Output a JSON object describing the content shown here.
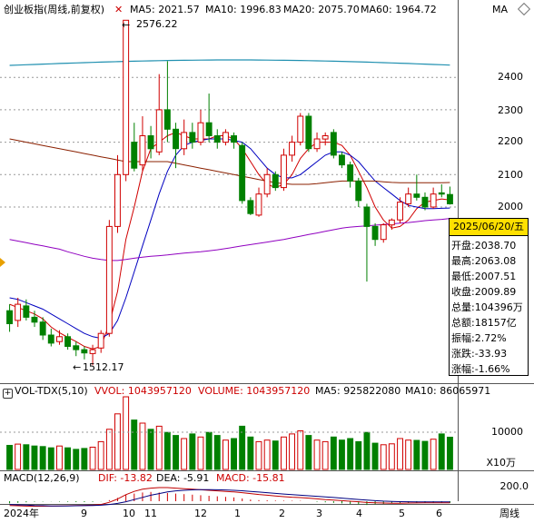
{
  "header": {
    "title": "创业板指(周线,前复权)",
    "ma5": "MA5: 2021.57",
    "ma10": "MA10: 1996.83",
    "ma20": "MA20: 2075.70",
    "ma60": "MA60: 1964.72",
    "ma_more": "MA",
    "colors": {
      "ma5": "#d00000",
      "ma10": "#0000c0",
      "ma20": "#8b2000",
      "ma60": "#9000c0"
    }
  },
  "price_axis": {
    "labels": [
      "2400",
      "2300",
      "2200",
      "2100",
      "2000"
    ]
  },
  "annotations": {
    "high": "2576.22",
    "low": "1512.17"
  },
  "info_panel": {
    "date": "2025/06/20/五",
    "rows": [
      {
        "text": "开盘:2038.70"
      },
      {
        "text": "最高:2063.08"
      },
      {
        "text": "最低:2007.51"
      },
      {
        "text": "收盘:2009.89"
      },
      {
        "text": "总量:104396万"
      },
      {
        "text": "总额:18157亿"
      },
      {
        "text": "振幅:2.72%"
      },
      {
        "text": "涨跌:-33.93"
      },
      {
        "text": "涨幅:-1.66%"
      }
    ]
  },
  "volume_panel": {
    "title": "VOL-TDX(5,10)",
    "vvol": "VVOL: 1043957120",
    "volume": "VOLUME: 1043957120",
    "ma5": "MA5: 925822080",
    "ma10": "MA10: 86065971",
    "axis_label": "10000",
    "unit": "X10万"
  },
  "macd_panel": {
    "title": "MACD(12,26,9)",
    "dif": "DIF: -13.82",
    "dea": "DEA: -5.91",
    "macd": "MACD: -15.81",
    "axis_label": "200.0"
  },
  "x_axis": {
    "labels": [
      "2024年",
      "9",
      "10",
      "11",
      "12",
      "1",
      "2",
      "3",
      "4",
      "5",
      "6"
    ],
    "period": "周线"
  },
  "chart_data": {
    "type": "candlestick",
    "y_axis_ticks": [
      2000,
      2100,
      2200,
      2300,
      2400
    ],
    "candles": [
      {
        "o": 1680,
        "c": 1640,
        "h": 1700,
        "l": 1615
      },
      {
        "o": 1650,
        "c": 1700,
        "h": 1720,
        "l": 1630
      },
      {
        "o": 1695,
        "c": 1660,
        "h": 1715,
        "l": 1650
      },
      {
        "o": 1660,
        "c": 1645,
        "h": 1680,
        "l": 1630
      },
      {
        "o": 1645,
        "c": 1605,
        "h": 1660,
        "l": 1590
      },
      {
        "o": 1605,
        "c": 1580,
        "h": 1625,
        "l": 1570
      },
      {
        "o": 1585,
        "c": 1600,
        "h": 1620,
        "l": 1575
      },
      {
        "o": 1600,
        "c": 1570,
        "h": 1610,
        "l": 1560
      },
      {
        "o": 1572,
        "c": 1560,
        "h": 1585,
        "l": 1540
      },
      {
        "o": 1560,
        "c": 1550,
        "h": 1570,
        "l": 1530
      },
      {
        "o": 1548,
        "c": 1560,
        "h": 1575,
        "l": 1512.17
      },
      {
        "o": 1565,
        "c": 1610,
        "h": 1620,
        "l": 1550
      },
      {
        "o": 1610,
        "c": 1940,
        "h": 1960,
        "l": 1600
      },
      {
        "o": 1940,
        "c": 2100,
        "h": 2160,
        "l": 1920
      },
      {
        "o": 2100,
        "c": 2576.22,
        "h": 2576.22,
        "l": 2080
      },
      {
        "o": 2200,
        "c": 2120,
        "h": 2260,
        "l": 2110
      },
      {
        "o": 2130,
        "c": 2220,
        "h": 2280,
        "l": 2110
      },
      {
        "o": 2220,
        "c": 2180,
        "h": 2250,
        "l": 2150
      },
      {
        "o": 2170,
        "c": 2300,
        "h": 2410,
        "l": 2160
      },
      {
        "o": 2300,
        "c": 2240,
        "h": 2450,
        "l": 2200
      },
      {
        "o": 2240,
        "c": 2180,
        "h": 2260,
        "l": 2120
      },
      {
        "o": 2180,
        "c": 2230,
        "h": 2270,
        "l": 2160
      },
      {
        "o": 2230,
        "c": 2200,
        "h": 2260,
        "l": 2180
      },
      {
        "o": 2200,
        "c": 2260,
        "h": 2300,
        "l": 2190
      },
      {
        "o": 2260,
        "c": 2220,
        "h": 2350,
        "l": 2200
      },
      {
        "o": 2220,
        "c": 2200,
        "h": 2240,
        "l": 2180
      },
      {
        "o": 2200,
        "c": 2230,
        "h": 2240,
        "l": 2190
      },
      {
        "o": 2220,
        "c": 2200,
        "h": 2230,
        "l": 2180
      },
      {
        "o": 2190,
        "c": 2020,
        "h": 2200,
        "l": 2010
      },
      {
        "o": 2020,
        "c": 1980,
        "h": 2030,
        "l": 1975
      },
      {
        "o": 1975,
        "c": 2040,
        "h": 2060,
        "l": 1970
      },
      {
        "o": 2040,
        "c": 2100,
        "h": 2120,
        "l": 2030
      },
      {
        "o": 2100,
        "c": 2060,
        "h": 2110,
        "l": 2050
      },
      {
        "o": 2060,
        "c": 2160,
        "h": 2180,
        "l": 2050
      },
      {
        "o": 2160,
        "c": 2200,
        "h": 2220,
        "l": 2140
      },
      {
        "o": 2200,
        "c": 2280,
        "h": 2290,
        "l": 2190
      },
      {
        "o": 2280,
        "c": 2180,
        "h": 2290,
        "l": 2170
      },
      {
        "o": 2180,
        "c": 2210,
        "h": 2230,
        "l": 2170
      },
      {
        "o": 2210,
        "c": 2220,
        "h": 2230,
        "l": 2190
      },
      {
        "o": 2230,
        "c": 2160,
        "h": 2240,
        "l": 2150
      },
      {
        "o": 2160,
        "c": 2130,
        "h": 2170,
        "l": 2120
      },
      {
        "o": 2130,
        "c": 2080,
        "h": 2140,
        "l": 2060
      },
      {
        "o": 2080,
        "c": 2020,
        "h": 2090,
        "l": 2000
      },
      {
        "o": 2000,
        "c": 1940,
        "h": 2010,
        "l": 1770
      },
      {
        "o": 1940,
        "c": 1900,
        "h": 1950,
        "l": 1880
      },
      {
        "o": 1900,
        "c": 1945,
        "h": 1950,
        "l": 1890
      },
      {
        "o": 1945,
        "c": 1960,
        "h": 1965,
        "l": 1930
      },
      {
        "o": 1960,
        "c": 2015,
        "h": 2030,
        "l": 1950
      },
      {
        "o": 2010,
        "c": 2040,
        "h": 2060,
        "l": 2000
      },
      {
        "o": 2040,
        "c": 2030,
        "h": 2100,
        "l": 2020
      },
      {
        "o": 2030,
        "c": 2000,
        "h": 2045,
        "l": 1990
      },
      {
        "o": 2000,
        "c": 2040,
        "h": 2060,
        "l": 1995
      },
      {
        "o": 2043.82,
        "c": 2040,
        "h": 2070,
        "l": 2030
      },
      {
        "o": 2038.7,
        "c": 2009.89,
        "h": 2063.08,
        "l": 2007.51
      }
    ],
    "ma_lines": [
      {
        "name": "MA5",
        "color": "#d00000",
        "values": [
          1700,
          1690,
          1680,
          1670,
          1655,
          1630,
          1612,
          1598,
          1585,
          1570,
          1562,
          1570,
          1640,
          1740,
          1900,
          2000,
          2110,
          2180,
          2200,
          2220,
          2230,
          2220,
          2210,
          2210,
          2210,
          2220,
          2220,
          2210,
          2180,
          2140,
          2100,
          2070,
          2060,
          2070,
          2100,
          2150,
          2180,
          2200,
          2200,
          2200,
          2190,
          2160,
          2110,
          2060,
          2000,
          1960,
          1935,
          1940,
          1960,
          1995,
          2015,
          2020,
          2025,
          2021.57
        ]
      },
      {
        "name": "MA10",
        "color": "#0000c0",
        "values": [
          1720,
          1715,
          1705,
          1695,
          1685,
          1670,
          1655,
          1640,
          1625,
          1610,
          1600,
          1595,
          1610,
          1650,
          1720,
          1800,
          1880,
          1960,
          2040,
          2110,
          2160,
          2190,
          2200,
          2205,
          2210,
          2210,
          2210,
          2205,
          2200,
          2180,
          2150,
          2120,
          2100,
          2090,
          2090,
          2100,
          2120,
          2140,
          2160,
          2170,
          2170,
          2160,
          2140,
          2110,
          2080,
          2060,
          2040,
          2020,
          2005,
          2000,
          1995,
          1995,
          1996,
          1996.83
        ]
      },
      {
        "name": "MA20",
        "color": "#8b2000",
        "values": [
          2210,
          2205,
          2200,
          2195,
          2190,
          2185,
          2180,
          2175,
          2170,
          2165,
          2160,
          2155,
          2150,
          2145,
          2140,
          2140,
          2140,
          2140,
          2140,
          2140,
          2135,
          2130,
          2125,
          2120,
          2115,
          2110,
          2105,
          2100,
          2095,
          2090,
          2085,
          2080,
          2075,
          2072,
          2070,
          2070,
          2070,
          2072,
          2075,
          2078,
          2080,
          2080,
          2080,
          2080,
          2080,
          2078,
          2076,
          2075,
          2075,
          2075,
          2075,
          2075,
          2075,
          2075.7
        ]
      },
      {
        "name": "MA60",
        "color": "#9000c0",
        "values": [
          1900,
          1895,
          1890,
          1885,
          1880,
          1875,
          1870,
          1862,
          1855,
          1848,
          1842,
          1838,
          1835,
          1835,
          1838,
          1842,
          1845,
          1848,
          1850,
          1852,
          1855,
          1858,
          1860,
          1862,
          1865,
          1868,
          1872,
          1876,
          1880,
          1884,
          1888,
          1892,
          1896,
          1900,
          1905,
          1910,
          1915,
          1920,
          1925,
          1930,
          1935,
          1938,
          1940,
          1942,
          1944,
          1946,
          1948,
          1950,
          1952,
          1955,
          1958,
          1960,
          1962,
          1964.72
        ]
      }
    ],
    "volume": [
      7800,
      8200,
      8000,
      7600,
      7400,
      7000,
      7600,
      7000,
      6500,
      6800,
      7200,
      9000,
      13000,
      18000,
      24000,
      16000,
      15000,
      13000,
      14000,
      12000,
      11000,
      10000,
      11500,
      10500,
      12000,
      11000,
      9500,
      10000,
      14000,
      10500,
      9000,
      9500,
      9200,
      10500,
      11500,
      12500,
      11000,
      9500,
      9000,
      10500,
      9500,
      10000,
      9000,
      12000,
      8500,
      8000,
      8300,
      10000,
      9500,
      9400,
      9100,
      9800,
      11500,
      10439.57
    ],
    "macd_hist": [
      -20,
      -15,
      -10,
      -5,
      -3,
      -2,
      -4,
      -6,
      -8,
      -8,
      -6,
      -2,
      10,
      30,
      60,
      70,
      80,
      85,
      80,
      75,
      70,
      65,
      60,
      55,
      50,
      45,
      40,
      35,
      25,
      15,
      10,
      8,
      6,
      5,
      4,
      3,
      0,
      -5,
      -10,
      -15,
      -20,
      -25,
      -30,
      -35,
      -30,
      -25,
      -20,
      -18,
      -16,
      -15,
      -15,
      -16,
      -15,
      -15.81
    ],
    "dif": [
      -40,
      -42,
      -45,
      -46,
      -46,
      -45,
      -44,
      -42,
      -40,
      -38,
      -35,
      -30,
      -10,
      20,
      60,
      90,
      110,
      120,
      125,
      125,
      120,
      115,
      110,
      105,
      100,
      95,
      90,
      85,
      78,
      70,
      62,
      55,
      48,
      42,
      37,
      33,
      28,
      22,
      15,
      10,
      5,
      0,
      -5,
      -12,
      -15,
      -17,
      -18,
      -18,
      -17,
      -16,
      -15,
      -14,
      -14,
      -13.82
    ],
    "dea": [
      -30,
      -33,
      -36,
      -39,
      -41,
      -43,
      -43,
      -43,
      -42,
      -41,
      -39,
      -37,
      -30,
      -20,
      -5,
      15,
      35,
      55,
      70,
      85,
      95,
      100,
      104,
      106,
      106,
      105,
      103,
      100,
      96,
      90,
      84,
      78,
      72,
      66,
      60,
      55,
      50,
      45,
      40,
      34,
      28,
      22,
      16,
      10,
      5,
      1,
      -2,
      -4,
      -5,
      -6,
      -6,
      -6,
      -6,
      -5.91
    ]
  }
}
